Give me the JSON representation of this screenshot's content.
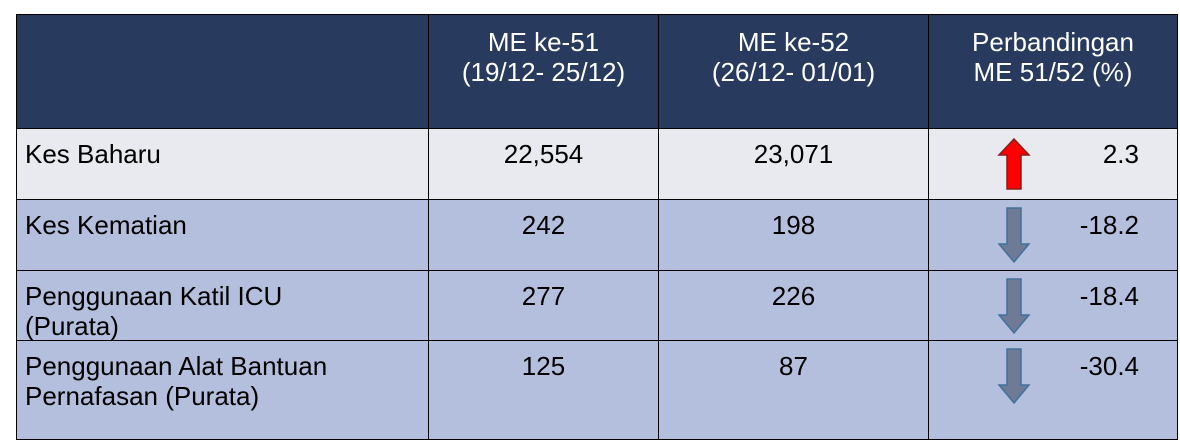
{
  "table": {
    "header": [
      [
        "ME ke-51",
        "(19/12- 25/12)"
      ],
      [
        "ME ke-52",
        "(26/12- 01/01)"
      ],
      [
        "Perbandingan",
        "ME 51/52 (%)"
      ]
    ],
    "rows": [
      [
        [
          "Kes Baharu"
        ],
        "22,554",
        "23,071",
        "2.3"
      ],
      [
        [
          "Kes Kematian"
        ],
        "242",
        "198",
        "-18.2"
      ],
      [
        [
          "Penggunaan Katil ICU",
          "(Purata)"
        ],
        "277",
        "226",
        "-18.4"
      ],
      [
        [
          "Penggunaan Alat Bantuan",
          "Pernafasan (Purata)"
        ],
        "125",
        "87",
        "-30.4"
      ]
    ]
  }
}
